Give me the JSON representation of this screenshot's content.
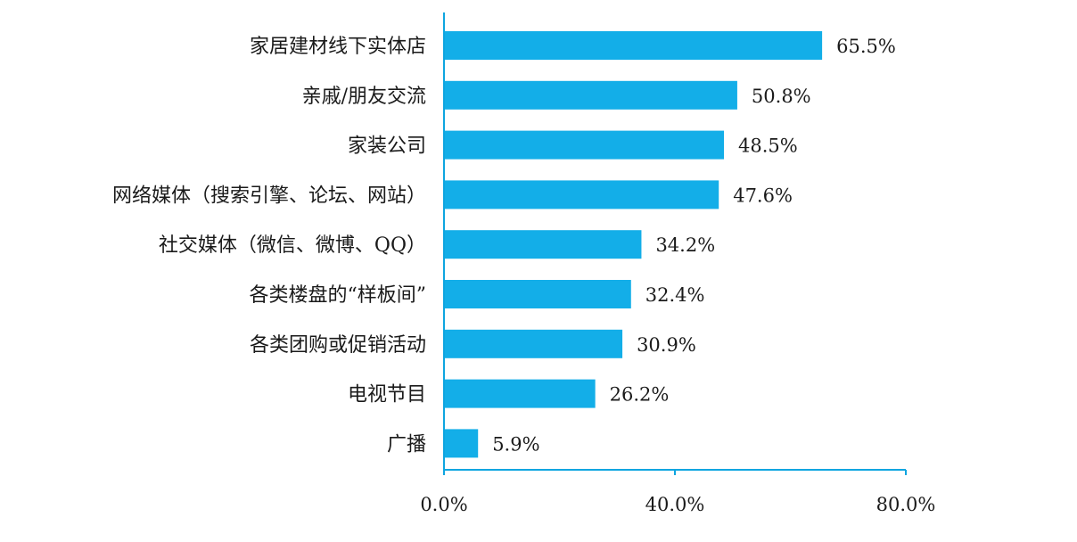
{
  "chart_data": {
    "type": "bar",
    "orientation": "horizontal",
    "categories": [
      "家居建材线下实体店",
      "亲戚/朋友交流",
      "家装公司",
      "网络媒体（搜索引擎、论坛、网站）",
      "社交媒体（微信、微博、QQ）",
      "各类楼盘的“样板间”",
      "各类团购或促销活动",
      "电视节目",
      "广播"
    ],
    "values": [
      65.5,
      50.8,
      48.5,
      47.6,
      34.2,
      32.4,
      30.9,
      26.2,
      5.9
    ],
    "value_labels": [
      "65.5%",
      "50.8%",
      "48.5%",
      "47.6%",
      "34.2%",
      "32.4%",
      "30.9%",
      "26.2%",
      "5.9%"
    ],
    "xlim": [
      0,
      80
    ],
    "x_ticks": [
      0,
      40,
      80
    ],
    "x_tick_labels": [
      "0.0%",
      "40.0%",
      "80.0%"
    ],
    "title": "",
    "xlabel": "",
    "ylabel": "",
    "grid": false,
    "legend": "none",
    "colors": {
      "bar": "#13aee8",
      "axis": "#0ea5e0",
      "text": "#1a1a1a"
    }
  }
}
